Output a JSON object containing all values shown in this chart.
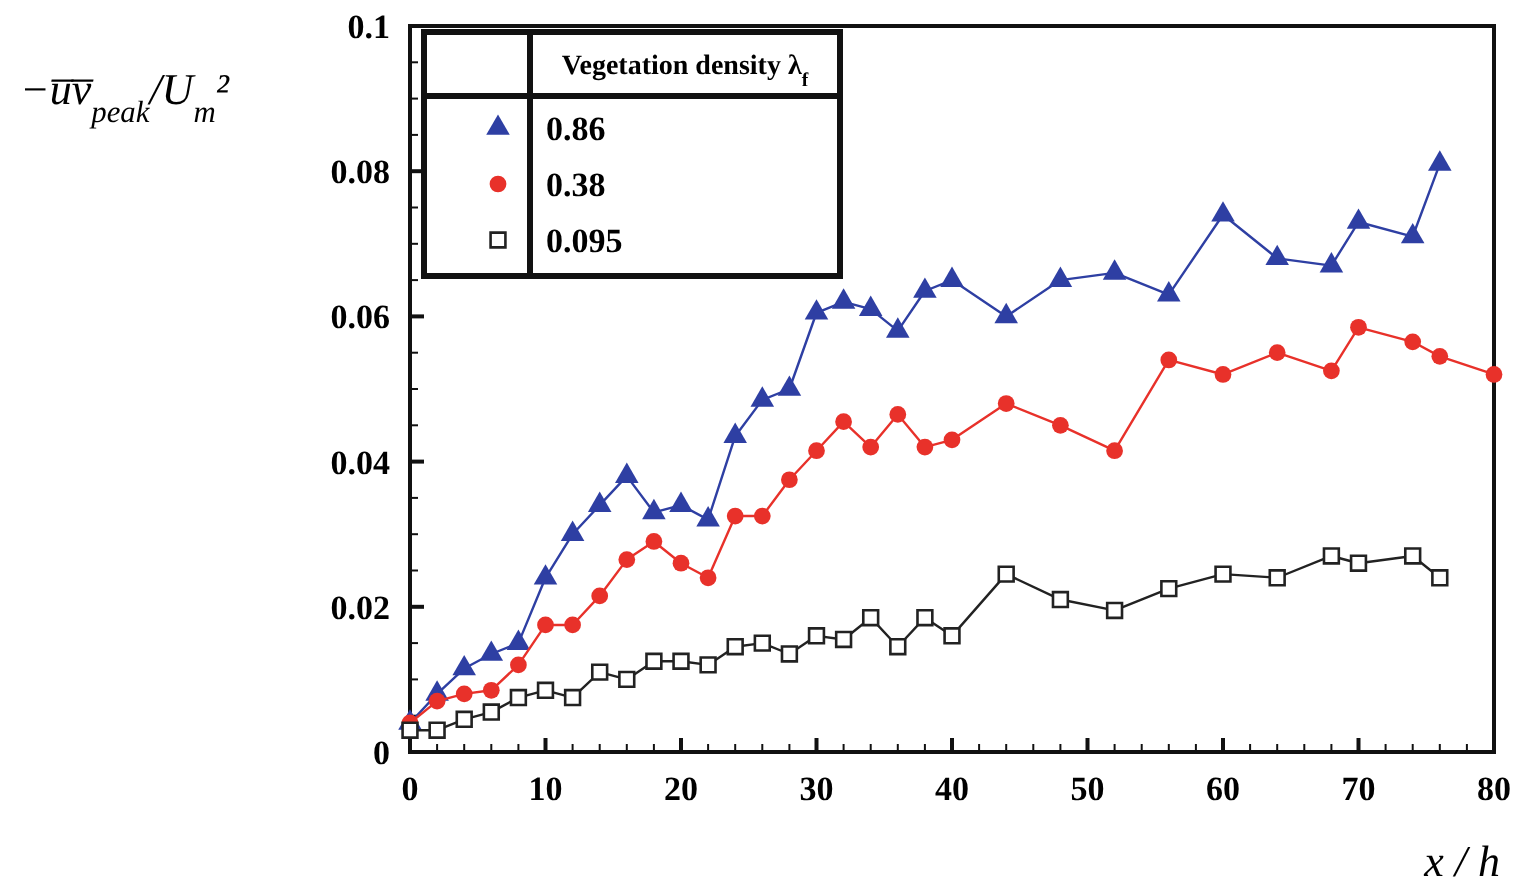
{
  "chart_data": {
    "type": "line",
    "xlabel": "x / h",
    "ylabel": "−u̅v̅$_{peak}$/U$_{m}$²",
    "legend_title": "Vegetation density λ$_{f}$",
    "legend": "top left",
    "xlim": [
      0,
      80
    ],
    "ylim": [
      0,
      0.1
    ],
    "xticks": [
      0,
      {
        "value": 2,
        "label": null
      },
      {
        "value": 4,
        "label": null
      },
      {
        "value": 6,
        "label": null
      },
      {
        "value": 8,
        "label": null
      },
      10,
      {
        "value": 12,
        "label": null
      },
      {
        "value": 14,
        "label": null
      },
      {
        "value": 16,
        "label": null
      },
      {
        "value": 18,
        "label": null
      },
      20,
      {
        "value": 22,
        "label": null
      },
      {
        "value": 24,
        "label": null
      },
      {
        "value": 26,
        "label": null
      },
      {
        "value": 28,
        "label": null
      },
      30,
      {
        "value": 32,
        "label": null
      },
      {
        "value": 34,
        "label": null
      },
      {
        "value": 36,
        "label": null
      },
      {
        "value": 38,
        "label": null
      },
      40,
      {
        "value": 42,
        "label": null
      },
      {
        "value": 44,
        "label": null
      },
      {
        "value": 46,
        "label": null
      },
      {
        "value": 48,
        "label": null
      },
      50,
      {
        "value": 52,
        "label": null
      },
      {
        "value": 54,
        "label": null
      },
      {
        "value": 56,
        "label": null
      },
      {
        "value": 58,
        "label": null
      },
      60,
      {
        "value": 62,
        "label": null
      },
      {
        "value": 64,
        "label": null
      },
      {
        "value": 66,
        "label": null
      },
      {
        "value": 68,
        "label": null
      },
      70,
      {
        "value": 72,
        "label": null
      },
      {
        "value": 74,
        "label": null
      },
      {
        "value": 76,
        "label": null
      },
      {
        "value": 78,
        "label": null
      },
      80
    ],
    "yticks": [
      0,
      {
        "value": 0.005,
        "label": null
      },
      {
        "value": 0.01,
        "label": null
      },
      {
        "value": 0.015,
        "label": null
      },
      0.02,
      {
        "value": 0.025,
        "label": null
      },
      {
        "value": 0.03,
        "label": null
      },
      {
        "value": 0.035,
        "label": null
      },
      0.04,
      {
        "value": 0.045,
        "label": null
      },
      {
        "value": 0.05,
        "label": null
      },
      {
        "value": 0.055,
        "label": null
      },
      0.06,
      {
        "value": 0.065,
        "label": null
      },
      {
        "value": 0.07,
        "label": null
      },
      {
        "value": 0.075,
        "label": null
      },
      0.08,
      {
        "value": 0.085,
        "label": null
      },
      {
        "value": 0.09,
        "label": null
      },
      {
        "value": 0.095,
        "label": null
      },
      0.1
    ],
    "line_style": "solid",
    "series": [
      {
        "name": "0.86",
        "color": "#2e3fa3",
        "marker": "triangle",
        "x": [
          0,
          2,
          4,
          6,
          8,
          10,
          12,
          14,
          16,
          18,
          20,
          22,
          24,
          26,
          28,
          30,
          32,
          34,
          36,
          38,
          40,
          44,
          48,
          52,
          56,
          60,
          64,
          68,
          70,
          74,
          76
        ],
        "values": [
          0.004,
          0.008,
          0.0115,
          0.0135,
          0.015,
          0.024,
          0.03,
          0.034,
          0.038,
          0.033,
          0.034,
          0.032,
          0.0435,
          0.0485,
          0.05,
          0.0605,
          0.062,
          0.061,
          0.058,
          0.0635,
          0.065,
          0.06,
          0.065,
          0.066,
          0.063,
          0.074,
          0.068,
          0.067,
          0.073,
          0.071,
          0.081
        ]
      },
      {
        "name": "0.38",
        "color": "#e8312a",
        "marker": "circle",
        "x": [
          0,
          2,
          4,
          6,
          8,
          10,
          12,
          14,
          16,
          18,
          20,
          22,
          24,
          26,
          28,
          30,
          32,
          34,
          36,
          38,
          40,
          44,
          48,
          52,
          56,
          60,
          64,
          68,
          70,
          74,
          76,
          80
        ],
        "values": [
          0.004,
          0.007,
          0.008,
          0.0085,
          0.012,
          0.0175,
          0.0175,
          0.0215,
          0.0265,
          0.029,
          0.026,
          0.024,
          0.0325,
          0.0325,
          0.0375,
          0.0415,
          0.0455,
          0.042,
          0.0465,
          0.042,
          0.043,
          0.048,
          0.045,
          0.0415,
          0.054,
          0.052,
          0.055,
          0.0525,
          0.0585,
          0.0565,
          0.0545,
          0.052
        ]
      },
      {
        "name": "0.095",
        "color": "#222222",
        "marker": "square",
        "x": [
          0,
          2,
          4,
          6,
          8,
          10,
          12,
          14,
          16,
          18,
          20,
          22,
          24,
          26,
          28,
          30,
          32,
          34,
          36,
          38,
          40,
          44,
          48,
          52,
          56,
          60,
          64,
          68,
          70,
          74,
          76
        ],
        "values": [
          0.003,
          0.003,
          0.0045,
          0.0055,
          0.0075,
          0.0085,
          0.0075,
          0.011,
          0.01,
          0.0125,
          0.0125,
          0.012,
          0.0145,
          0.015,
          0.0135,
          0.016,
          0.0155,
          0.0185,
          0.0145,
          0.0185,
          0.016,
          0.0245,
          0.021,
          0.0195,
          0.0225,
          0.0245,
          0.024,
          0.027,
          0.026,
          0.027,
          0.024
        ]
      }
    ]
  }
}
